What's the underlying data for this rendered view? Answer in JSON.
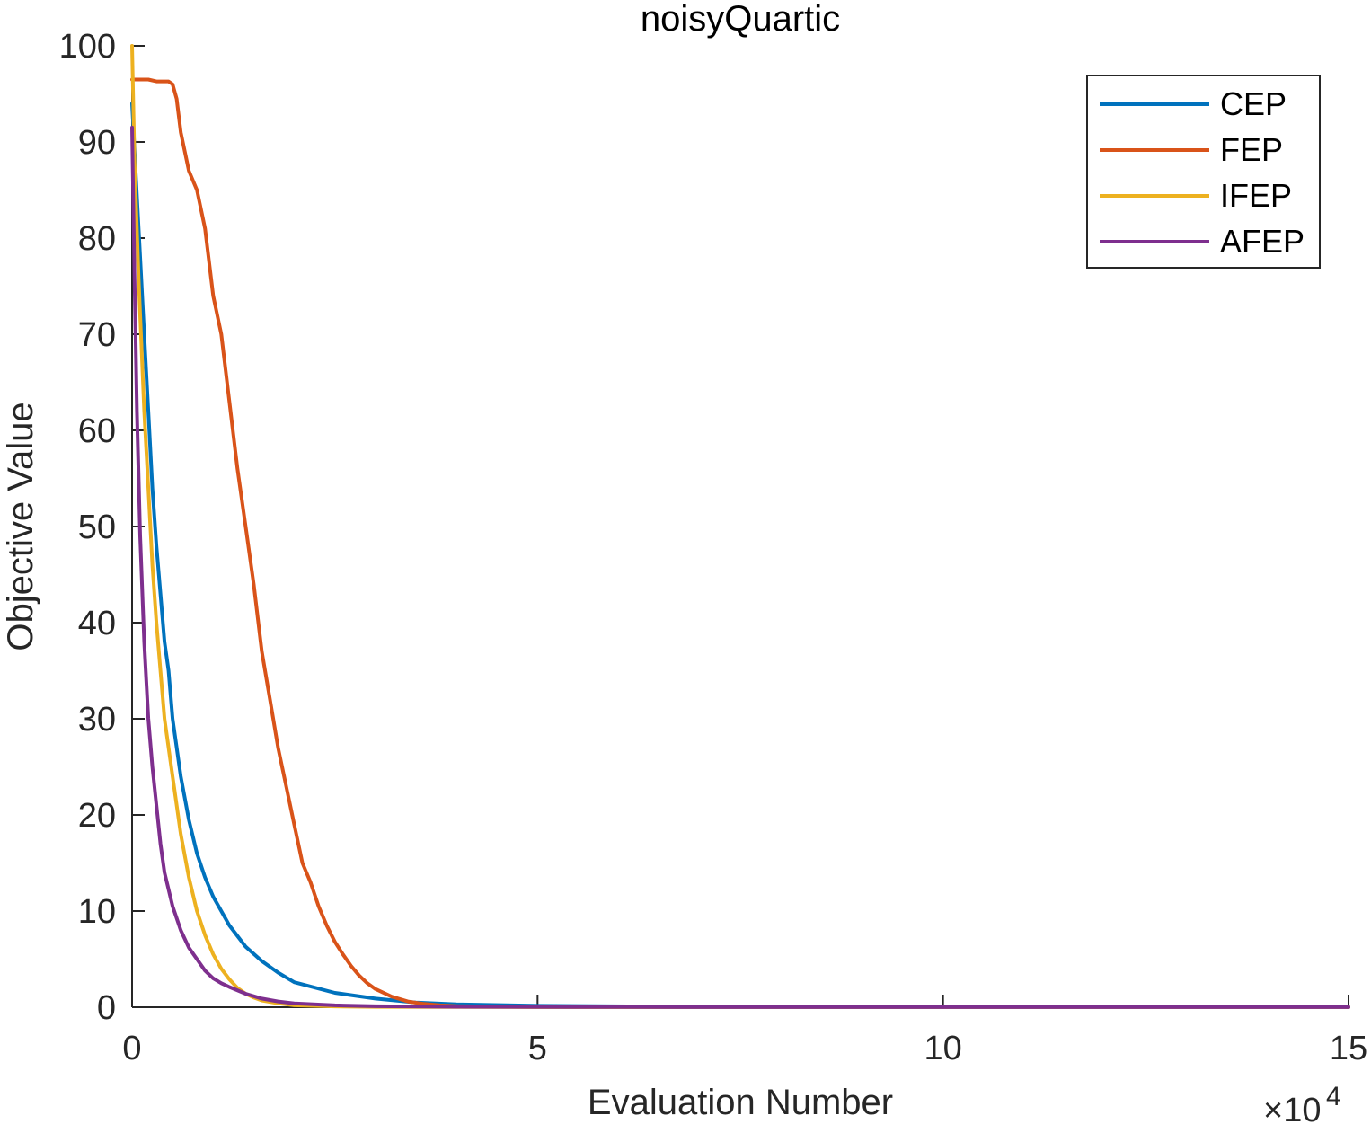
{
  "chart_data": {
    "type": "line",
    "title": "noisyQuartic",
    "xlabel": "Evaluation Number",
    "ylabel": "Objective Value",
    "x_exponent_base": "×10",
    "x_exponent_power": "4",
    "xlim": [
      0,
      150000
    ],
    "ylim": [
      0,
      100
    ],
    "x_ticks": [
      0,
      50000,
      100000,
      150000
    ],
    "x_tick_labels": [
      "0",
      "5",
      "10",
      "15"
    ],
    "y_ticks": [
      0,
      10,
      20,
      30,
      40,
      50,
      60,
      70,
      80,
      90,
      100
    ],
    "y_tick_labels": [
      "0",
      "10",
      "20",
      "30",
      "40",
      "50",
      "60",
      "70",
      "80",
      "90",
      "100"
    ],
    "grid": false,
    "legend_position": "top-right",
    "series": [
      {
        "name": "CEP",
        "color": "#0072BD",
        "x": [
          0,
          500,
          1000,
          1500,
          2000,
          2500,
          3000,
          3500,
          4000,
          4500,
          5000,
          6000,
          7000,
          8000,
          9000,
          10000,
          12000,
          14000,
          16000,
          18000,
          20000,
          25000,
          30000,
          35000,
          40000,
          50000,
          70000,
          100000,
          150000
        ],
        "y": [
          94,
          86,
          78,
          70,
          62,
          54,
          48,
          43,
          38,
          35,
          30,
          24,
          19.5,
          16,
          13.5,
          11.5,
          8.5,
          6.3,
          4.8,
          3.6,
          2.6,
          1.5,
          0.9,
          0.5,
          0.3,
          0.15,
          0.05,
          0.02,
          0.01
        ]
      },
      {
        "name": "FEP",
        "color": "#D95319",
        "x": [
          0,
          1000,
          2000,
          3000,
          4000,
          4500,
          5000,
          5500,
          6000,
          7000,
          8000,
          9000,
          10000,
          11000,
          12000,
          13000,
          14000,
          15000,
          16000,
          17000,
          18000,
          19000,
          20000,
          21000,
          22000,
          23000,
          24000,
          25000,
          26000,
          27000,
          28000,
          29000,
          30000,
          32000,
          34000,
          36000,
          38000,
          40000,
          45000,
          50000,
          60000,
          80000,
          100000,
          150000
        ],
        "y": [
          96.5,
          96.5,
          96.5,
          96.3,
          96.3,
          96.3,
          96,
          94.5,
          91,
          87,
          85,
          81,
          74,
          70,
          63,
          56,
          50,
          44,
          37,
          32,
          27,
          23,
          19,
          15,
          13,
          10.5,
          8.5,
          6.8,
          5.5,
          4.3,
          3.3,
          2.5,
          1.9,
          1.1,
          0.6,
          0.35,
          0.2,
          0.12,
          0.06,
          0.03,
          0.02,
          0.01,
          0.01,
          0.01
        ]
      },
      {
        "name": "IFEP",
        "color": "#EDB120",
        "x": [
          0,
          300,
          800,
          1500,
          2000,
          2500,
          3000,
          3500,
          4000,
          5000,
          6000,
          7000,
          8000,
          9000,
          10000,
          11000,
          12000,
          13000,
          14000,
          15000,
          16000,
          18000,
          20000,
          25000,
          30000,
          40000,
          60000,
          100000,
          150000
        ],
        "y": [
          100,
          88,
          76,
          62,
          54,
          46,
          40,
          35,
          30,
          24,
          18,
          13.5,
          10,
          7.5,
          5.5,
          4,
          2.9,
          2,
          1.4,
          1,
          0.7,
          0.4,
          0.2,
          0.08,
          0.04,
          0.02,
          0.01,
          0.01,
          0.01
        ]
      },
      {
        "name": "AFEP",
        "color": "#7E2F8E",
        "x": [
          0,
          300,
          600,
          1000,
          1500,
          2000,
          2500,
          3000,
          3500,
          4000,
          5000,
          6000,
          7000,
          8000,
          9000,
          10000,
          11000,
          12000,
          14000,
          16000,
          18000,
          20000,
          25000,
          30000,
          40000,
          60000,
          100000,
          150000
        ],
        "y": [
          91.5,
          76,
          62,
          49,
          38,
          30,
          25,
          21,
          17,
          14,
          10.5,
          8,
          6.2,
          5,
          3.8,
          3,
          2.5,
          2.1,
          1.4,
          0.9,
          0.6,
          0.4,
          0.2,
          0.1,
          0.05,
          0.02,
          0.01,
          0.01
        ]
      }
    ]
  }
}
